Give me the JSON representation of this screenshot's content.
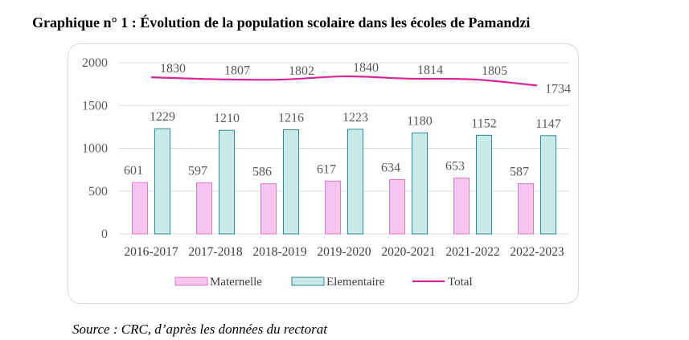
{
  "title": "Graphique n° 1 :  Évolution de la population scolaire dans les écoles de Pamandzi",
  "source": "Source : CRC, d’après les données du rectorat",
  "colors": {
    "maternelle_fill": "#f7c6ee",
    "maternelle_stroke": "#e07ad0",
    "elementaire_fill": "#c8ebea",
    "elementaire_stroke": "#2e8a8a",
    "total_line": "#d62596",
    "grid": "#d9d9d9"
  },
  "chart_data": {
    "type": "bar",
    "categories": [
      "2016-2017",
      "2017-2018",
      "2018-2019",
      "2019-2020",
      "2020-2021",
      "2021-2022",
      "2022-2023"
    ],
    "series": [
      {
        "name": "Maternelle",
        "type": "bar",
        "values": [
          601,
          597,
          586,
          617,
          634,
          653,
          587
        ]
      },
      {
        "name": "Elementaire",
        "type": "bar",
        "values": [
          1229,
          1210,
          1216,
          1223,
          1180,
          1152,
          1147
        ]
      },
      {
        "name": "Total",
        "type": "line",
        "values": [
          1830,
          1807,
          1802,
          1840,
          1814,
          1805,
          1734
        ]
      }
    ],
    "yticks": [
      "0",
      "500",
      "1000",
      "1500",
      "2000"
    ],
    "ylim": [
      0,
      2000
    ],
    "grid": true,
    "legend_position": "bottom",
    "xlabel": "",
    "ylabel": ""
  }
}
